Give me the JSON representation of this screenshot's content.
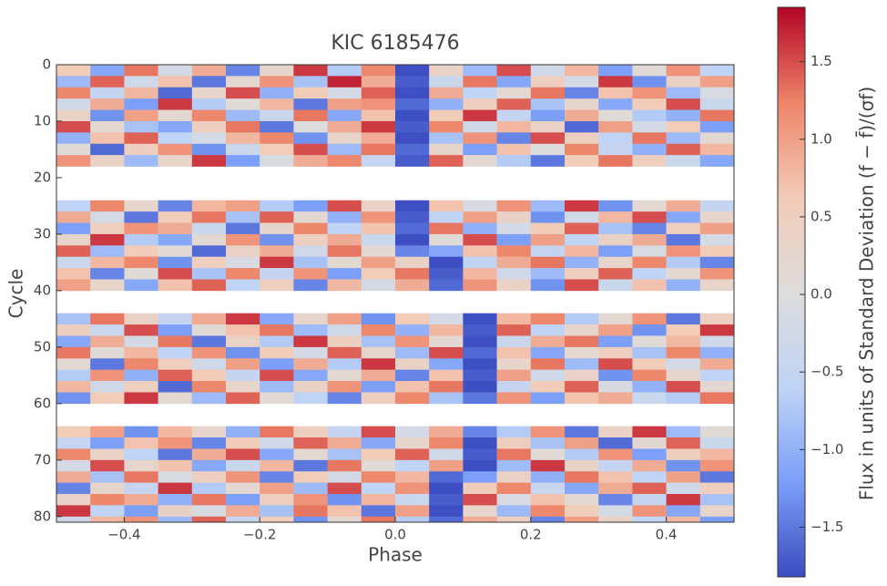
{
  "chart_data": {
    "type": "heatmap",
    "title": "KIC 6185476",
    "x_label": "Phase",
    "y_label": "Cycle",
    "colorbar_label": "Flux in units of Standard Deviation (f − f̄)/(σf)",
    "xlim": [
      -0.5,
      0.5
    ],
    "ylim": [
      81,
      0
    ],
    "xticks": [
      {
        "value": -0.4,
        "label": "−0.4"
      },
      {
        "value": -0.2,
        "label": "−0.2"
      },
      {
        "value": 0,
        "label": "0.0"
      },
      0.2,
      0.4
    ],
    "yticks": [
      0,
      10,
      20,
      30,
      40,
      50,
      60,
      70,
      80
    ],
    "clim": [
      -1.82,
      1.85
    ],
    "cticks": [
      {
        "value": -1.5,
        "label": "−1.5"
      },
      {
        "value": -1.0,
        "label": "−1.0"
      },
      {
        "value": -0.5,
        "label": "−0.5"
      },
      {
        "value": 0,
        "label": "0.0"
      },
      0.5,
      {
        "value": 1.0,
        "label": "1.0"
      },
      1.5
    ],
    "colormap": [
      "#3b4cc0",
      "#7b9ff9",
      "#c0d4f5",
      "#dddcdc",
      "#f2cbb7",
      "#ee8468",
      "#b40426"
    ],
    "x_bins": [
      -0.5,
      -0.45,
      -0.4,
      -0.35,
      -0.3,
      -0.25,
      -0.2,
      -0.15,
      -0.1,
      -0.05,
      0,
      0.05,
      0.1,
      0.15,
      0.2,
      0.25,
      0.3,
      0.35,
      0.4,
      0.45,
      0.5
    ],
    "y_bins": [
      0,
      2,
      4,
      6,
      8,
      10,
      12,
      14,
      16,
      18,
      20,
      22,
      24,
      26,
      28,
      30,
      32,
      34,
      36,
      38,
      40,
      42,
      44,
      46,
      48,
      50,
      52,
      54,
      56,
      58,
      60,
      62,
      64,
      66,
      68,
      70,
      72,
      74,
      76,
      78,
      80,
      81
    ],
    "values": [
      [
        0.6,
        -1.1,
        1.3,
        -0.2,
        0.9,
        -1.4,
        0.3,
        1.6,
        -0.7,
        1.2,
        -1.8,
        0.4,
        -0.9,
        1.5,
        -0.3,
        0.8,
        -1.2,
        0.1,
        1.1,
        -0.6
      ],
      [
        -0.9,
        1.4,
        -0.3,
        0.7,
        -1.5,
        0.2,
        1.1,
        -0.8,
        1.7,
        0.9,
        -1.7,
        -0.4,
        1.3,
        -1.1,
        0.5,
        -0.2,
        1.6,
        -1.3,
        0.4,
        1.0
      ],
      [
        1.2,
        -0.5,
        0.8,
        -1.6,
        0.3,
        1.5,
        -1.0,
        0.6,
        -0.2,
        1.4,
        -1.8,
        0.9,
        -0.6,
        0.2,
        1.3,
        -1.4,
        0.7,
        1.1,
        -0.9,
        -0.1
      ],
      [
        -0.3,
        0.9,
        -1.2,
        1.6,
        -0.7,
        0.1,
        0.8,
        -1.5,
        1.0,
        1.1,
        -1.6,
        -1.0,
        0.5,
        1.4,
        -0.8,
        0.3,
        -1.1,
        0.6,
        1.5,
        -0.4
      ],
      [
        0.4,
        -1.3,
        1.0,
        0.2,
        1.2,
        -0.9,
        -0.4,
        1.3,
        -1.1,
        0.7,
        -1.8,
        0.6,
        1.6,
        -0.5,
        -1.2,
        0.9,
        0.1,
        -0.7,
        -1.0,
        1.3
      ],
      [
        1.5,
        0.2,
        -0.8,
        -1.1,
        0.5,
        1.3,
        -1.5,
        0.0,
        0.9,
        1.6,
        -1.7,
        1.2,
        -0.3,
        0.8,
        0.4,
        -1.6,
        1.0,
        -0.2,
        0.6,
        -1.2
      ],
      [
        -1.0,
        0.7,
        1.4,
        -0.6,
        -0.2,
        0.8,
        1.2,
        -1.3,
        0.3,
        0.9,
        -1.8,
        -0.8,
        1.1,
        -1.4,
        1.5,
        0.5,
        -0.6,
        1.3,
        -0.9,
        0.2
      ],
      [
        0.1,
        -1.6,
        0.5,
        1.1,
        -1.3,
        -0.4,
        0.6,
        1.5,
        -0.9,
        1.3,
        -1.6,
        0.3,
        -1.2,
        0.7,
        0.0,
        1.2,
        -0.5,
        -1.0,
        1.4,
        0.8
      ],
      [
        1.1,
        0.4,
        -0.9,
        0.3,
        1.6,
        -1.2,
        -0.1,
        0.9,
        1.2,
        -0.5,
        -1.7,
        1.4,
        0.2,
        -0.7,
        -1.5,
        0.6,
        1.3,
        0.5,
        -0.4,
        -1.1
      ],
      null,
      null,
      null,
      [
        -0.6,
        1.2,
        0.3,
        -1.4,
        0.8,
        1.0,
        -0.7,
        -1.2,
        1.5,
        0.4,
        -1.8,
        0.7,
        -0.1,
        1.1,
        -0.9,
        1.6,
        -1.3,
        0.2,
        0.9,
        -0.5
      ],
      [
        0.9,
        -0.2,
        -1.5,
        0.6,
        1.3,
        -0.8,
        1.4,
        0.2,
        -1.0,
        1.1,
        -1.7,
        -0.6,
        1.0,
        0.4,
        -1.3,
        -0.3,
        0.8,
        1.5,
        -1.1,
        0.3
      ],
      [
        -1.2,
        0.5,
        1.1,
        0.9,
        -0.4,
        -1.5,
        0.3,
        1.2,
        -0.6,
        0.7,
        -1.6,
        1.3,
        -1.0,
        -0.2,
        0.6,
        1.4,
        -0.8,
        -1.4,
        0.5,
        1.0
      ],
      [
        0.3,
        1.6,
        -0.7,
        -1.1,
        0.2,
        1.1,
        -1.3,
        0.5,
        0.9,
        -0.4,
        -1.8,
        0.1,
        1.5,
        -1.2,
        1.0,
        -0.6,
        0.4,
        0.9,
        -1.5,
        -0.2
      ],
      [
        1.4,
        -0.9,
        0.6,
        0.1,
        -1.6,
        0.4,
        0.9,
        -0.3,
        1.3,
        0.2,
        -1.4,
        -1.1,
        0.7,
        1.2,
        -0.5,
        0.8,
        -1.2,
        -0.1,
        1.1,
        0.6
      ],
      [
        -0.4,
        0.8,
        1.2,
        -1.3,
        0.5,
        -0.1,
        1.6,
        -0.8,
        0.2,
        1.0,
        0.4,
        -1.8,
        -0.6,
        0.9,
        1.3,
        -1.0,
        0.3,
        1.2,
        -0.7,
        -1.4
      ],
      [
        0.7,
        -1.4,
        0.1,
        1.5,
        -0.8,
        1.2,
        -0.5,
        1.1,
        -1.2,
        0.6,
        1.3,
        -1.7,
        0.8,
        -0.3,
        -0.9,
        0.5,
        1.4,
        -0.6,
        0.2,
        1.1
      ],
      [
        1.0,
        0.3,
        -1.1,
        0.7,
        1.4,
        -0.6,
        0.5,
        -1.4,
        0.8,
        -0.2,
        0.9,
        -1.6,
        1.1,
        0.4,
        -1.3,
        1.5,
        -0.4,
        0.7,
        -1.0,
        0.3
      ],
      null,
      null,
      [
        -0.8,
        1.3,
        0.4,
        -0.5,
        0.9,
        1.6,
        -1.1,
        0.3,
        1.0,
        -1.3,
        0.6,
        -0.2,
        -1.8,
        0.8,
        1.2,
        -0.7,
        0.2,
        1.1,
        -1.5,
        0.5
      ],
      [
        0.5,
        -0.4,
        1.5,
        -1.2,
        0.1,
        0.7,
        1.3,
        -0.9,
        -0.3,
        1.2,
        -1.0,
        0.8,
        -1.7,
        1.4,
        -0.6,
        0.3,
        1.0,
        -1.3,
        0.6,
        1.6
      ],
      [
        -1.1,
        0.9,
        -0.2,
        1.3,
        -1.5,
        0.4,
        -0.7,
        1.6,
        0.5,
        -0.8,
        1.1,
        0.2,
        -1.8,
        -0.4,
        0.9,
        1.3,
        -1.2,
        0.1,
        0.8,
        -0.3
      ],
      [
        1.3,
        0.1,
        0.8,
        -0.6,
        1.1,
        -1.3,
        0.6,
        -0.2,
        1.4,
        0.3,
        -0.9,
        1.5,
        -1.6,
        0.7,
        -1.1,
        0.2,
        0.5,
        -0.8,
        1.2,
        -1.0
      ],
      [
        0.2,
        -1.5,
        1.2,
        0.5,
        -0.3,
        1.0,
        -1.2,
        0.9,
        -0.7,
        1.6,
        0.4,
        -1.1,
        -1.8,
        0.3,
        1.3,
        -0.9,
        1.5,
        0.6,
        -0.2,
        0.9
      ],
      [
        -0.7,
        1.1,
        -1.0,
        1.4,
        0.6,
        -0.5,
        1.5,
        -1.1,
        0.2,
        0.9,
        -1.4,
        0.7,
        -1.7,
        1.0,
        -0.3,
        0.4,
        -1.3,
        1.2,
        0.3,
        -0.6
      ],
      [
        0.8,
        -0.3,
        0.5,
        -1.6,
        1.2,
        0.3,
        -0.9,
        0.4,
        1.1,
        -1.2,
        0.7,
        1.3,
        -1.8,
        -0.5,
        0.6,
        1.4,
        -0.1,
        -1.0,
        1.5,
        0.2
      ],
      [
        -1.3,
        0.6,
        1.6,
        0.2,
        -0.9,
        1.4,
        0.1,
        -0.6,
        -1.4,
        0.5,
        1.2,
        -0.8,
        -1.5,
        1.1,
        -1.2,
        0.7,
        0.9,
        -0.4,
        -0.7,
        1.3
      ],
      null,
      null,
      [
        0.6,
        1.0,
        -1.3,
        0.8,
        0.3,
        -1.0,
        1.3,
        0.5,
        -0.5,
        1.5,
        -0.2,
        0.9,
        -1.4,
        -0.7,
        1.1,
        -1.5,
        0.4,
        1.6,
        -0.9,
        0.1
      ],
      [
        -0.5,
        -1.2,
        0.7,
        1.1,
        -1.4,
        0.6,
        -0.3,
        1.4,
        0.9,
        -1.1,
        0.3,
        1.2,
        -1.8,
        0.5,
        -0.8,
        1.0,
        -1.6,
        0.2,
        1.4,
        -0.4
      ],
      [
        1.2,
        0.4,
        -0.6,
        -1.5,
        0.9,
        1.5,
        -1.1,
        0.2,
        -0.8,
        0.6,
        1.4,
        -0.3,
        -1.7,
        1.3,
        0.1,
        -0.7,
        1.1,
        -1.2,
        0.5,
        0.8
      ],
      [
        -0.2,
        1.5,
        0.3,
        0.7,
        -1.1,
        -0.4,
        0.8,
        -1.5,
        1.3,
        0.1,
        -0.6,
        1.0,
        -1.8,
        -0.9,
        1.6,
        0.4,
        -0.5,
        0.9,
        -1.3,
        1.1
      ],
      [
        0.9,
        -0.8,
        1.3,
        -0.1,
        0.5,
        1.1,
        -1.4,
        0.6,
        -0.2,
        1.2,
        0.8,
        -1.6,
        -1.2,
        0.4,
        -1.0,
        1.3,
        0.7,
        -0.6,
        1.0,
        -1.5
      ],
      [
        -1.4,
        0.3,
        -0.5,
        1.6,
        -0.7,
        0.2,
        1.0,
        -0.9,
        1.5,
        -0.6,
        1.1,
        -1.8,
        0.6,
        1.2,
        -0.4,
        -1.1,
        0.9,
        1.4,
        -0.3,
        0.5
      ],
      [
        0.4,
        1.2,
        0.9,
        -1.0,
        1.3,
        -1.2,
        0.5,
        1.1,
        -1.3,
        0.8,
        -0.4,
        -1.7,
        1.5,
        -0.1,
        0.7,
        0.2,
        -1.4,
        -0.5,
        1.6,
        -0.8
      ],
      [
        1.6,
        -0.6,
        -1.2,
        0.4,
        -0.1,
        0.9,
        -0.8,
        1.3,
        0.7,
        -1.5,
        1.0,
        -1.8,
        0.3,
        -0.9,
        1.2,
        0.6,
        -0.2,
        1.1,
        -1.1,
        0.3
      ],
      [
        -0.3,
        0.8,
        1.1,
        -0.9,
        1.4,
        -0.5,
        0.6,
        -1.3,
        0.2,
        1.3,
        -0.7,
        -1.6,
        0.9,
        0.5,
        -1.4,
        1.0,
        0.4,
        -0.6,
        0.8,
        -1.2
      ]
    ]
  }
}
